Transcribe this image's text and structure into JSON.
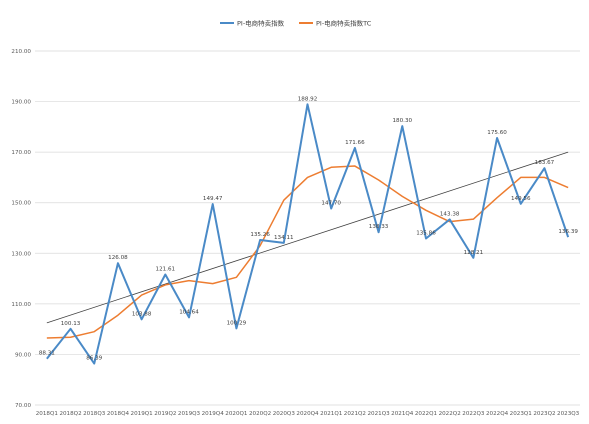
{
  "chart_data": {
    "type": "line",
    "title": "",
    "xlabel": "",
    "ylabel": "",
    "ylim": [
      70,
      210
    ],
    "yticks": [
      70,
      90,
      110,
      130,
      150,
      170,
      190,
      210
    ],
    "ytick_labels": [
      "70.00",
      "90.00",
      "110.00",
      "130.00",
      "150.00",
      "170.00",
      "190.00",
      "210.00"
    ],
    "grid": true,
    "legend_position": "top-center",
    "categories": [
      "2018Q1",
      "2018Q2",
      "2018Q3",
      "2018Q4",
      "2019Q1",
      "2019Q2",
      "2019Q3",
      "2019Q4",
      "2020Q1",
      "2020Q2",
      "2020Q3",
      "2020Q4",
      "2021Q1",
      "2021Q2",
      "2021Q3",
      "2021Q4",
      "2022Q1",
      "2022Q2",
      "2022Q3",
      "2022Q4",
      "2023Q1",
      "2023Q2",
      "2023Q3"
    ],
    "series": [
      {
        "name": "PI-电商特卖指数",
        "color": "#4a8ac7",
        "values": [
          88.31,
          100.13,
          86.39,
          126.08,
          103.88,
          121.61,
          104.64,
          149.47,
          100.29,
          135.26,
          134.11,
          188.92,
          147.7,
          171.66,
          138.33,
          180.3,
          135.86,
          143.38,
          128.21,
          175.6,
          149.56,
          163.67,
          136.39
        ],
        "labels": [
          "88.31",
          "100.13",
          "86.39",
          "126.08",
          "103.88",
          "121.61",
          "104.64",
          "149.47",
          "100.29",
          "135.26",
          "134.11",
          "188.92",
          "147.70",
          "171.66",
          "138.33",
          "180.30",
          "135.86",
          "143.38",
          "128.21",
          "175.60",
          "149.56",
          "163.67",
          "136.39"
        ]
      },
      {
        "name": "PI-电商特卖指数TC",
        "color": "#ed7d31",
        "values": [
          96.5,
          96.8,
          99.0,
          105.5,
          113.5,
          117.5,
          119.2,
          118.0,
          120.5,
          133.0,
          151.0,
          160.0,
          164.0,
          164.5,
          159.0,
          152.5,
          147.0,
          142.5,
          143.5,
          152.0,
          160.0,
          160.0,
          156.0
        ]
      }
    ],
    "trendline": {
      "type": "linear",
      "color": "#404040",
      "start": 102.5,
      "end": 170.0
    }
  }
}
